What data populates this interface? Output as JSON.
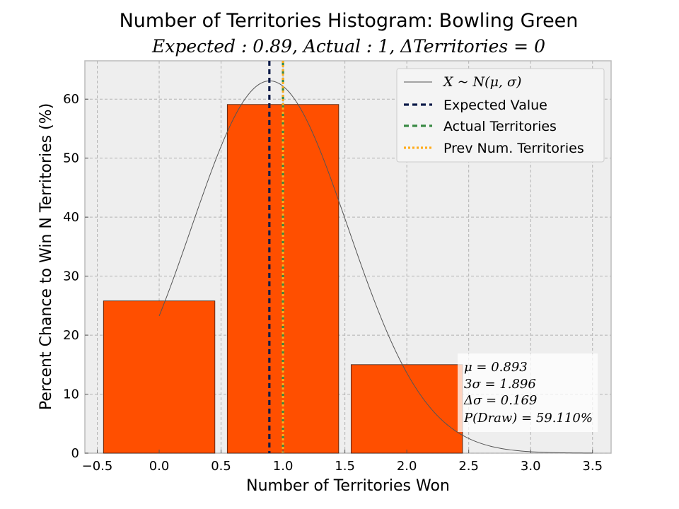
{
  "chart_data": {
    "type": "bar",
    "title": "Number of Territories Histogram: Bowling Green",
    "subtitle": "Expected : 0.89, Actual : 1, ΔTerritories = 0",
    "xlabel": "Number of Territories Won",
    "ylabel": "Percent Chance to Win N Territories (%)",
    "xlim": [
      -0.6,
      3.65
    ],
    "ylim": [
      0,
      66.5
    ],
    "x_ticks": [
      -0.5,
      0.0,
      0.5,
      1.0,
      1.5,
      2.0,
      2.5,
      3.0,
      3.5
    ],
    "x_tick_labels": [
      "−0.5",
      "0.0",
      "0.5",
      "1.0",
      "1.5",
      "2.0",
      "2.5",
      "3.0",
      "3.5"
    ],
    "y_ticks": [
      0,
      10,
      20,
      30,
      40,
      50,
      60
    ],
    "y_tick_labels": [
      "0",
      "10",
      "20",
      "30",
      "40",
      "50",
      "60"
    ],
    "grid": true,
    "bar_width": 0.9,
    "bar_color": "#ff4f00",
    "categories": [
      0,
      1,
      2
    ],
    "values": [
      25.8,
      59.1,
      15.0
    ],
    "normal_curve": {
      "mu": 0.893,
      "sigma": 0.632,
      "x_range": [
        0,
        3.5
      ],
      "peak": 63.1,
      "color": "#555555"
    },
    "vlines": [
      {
        "x": 0.89,
        "color": "#0b1a48",
        "style": "dashed",
        "label": "Expected Value"
      },
      {
        "x": 1.0,
        "color": "#3a8a45",
        "style": "dashed",
        "label": "Actual Territories"
      },
      {
        "x": 1.0,
        "color": "#ffad1f",
        "style": "dotted",
        "label": "Prev Num. Territories"
      }
    ],
    "legend": {
      "placement": "top-right",
      "entries": [
        {
          "label": "X ~ N(μ, σ)",
          "kind": "curve"
        },
        {
          "label": "Expected Value",
          "kind": "vline-0"
        },
        {
          "label": "Actual Territories",
          "kind": "vline-1"
        },
        {
          "label": "Prev Num. Territories",
          "kind": "vline-2"
        }
      ]
    },
    "stats_box": {
      "placement": "bottom-right",
      "lines": [
        "μ = 0.893",
        "3σ = 1.896",
        "Δσ = 0.169",
        "P(Draw) = 59.110%"
      ]
    }
  }
}
